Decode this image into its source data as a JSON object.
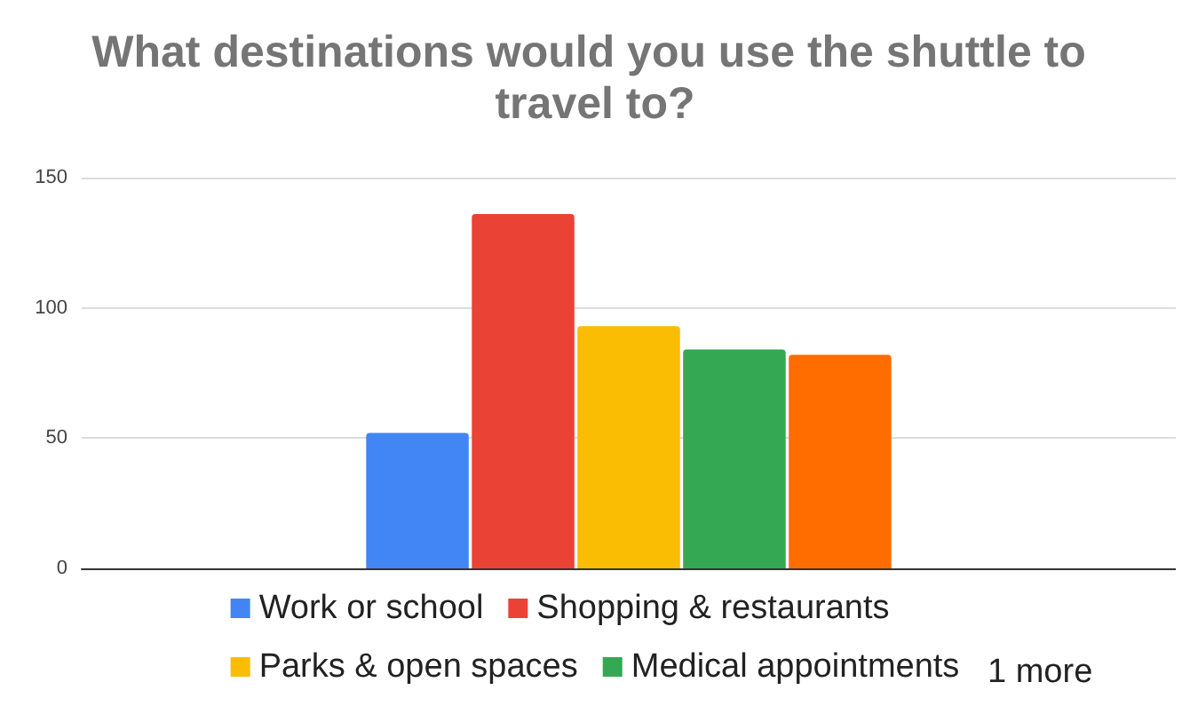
{
  "chart_data": {
    "type": "bar",
    "title": "What destinations would you use the shuttle to travel to?",
    "categories": [
      null
    ],
    "series": [
      {
        "name": "Work or school",
        "color": "#4285f4",
        "values": [
          52
        ]
      },
      {
        "name": "Shopping & restaurants",
        "color": "#ea4335",
        "values": [
          136
        ]
      },
      {
        "name": "Parks & open spaces",
        "color": "#fbbc04",
        "values": [
          93
        ]
      },
      {
        "name": "Medical appointments",
        "color": "#34a853",
        "values": [
          84
        ]
      },
      {
        "color": "#ff6d01",
        "values": [
          82
        ]
      }
    ],
    "annotations": [
      "1 more"
    ],
    "ylim": [
      0,
      150
    ],
    "yticks": [
      0,
      50,
      100,
      150
    ],
    "grid": "y",
    "legend": "bottom"
  }
}
